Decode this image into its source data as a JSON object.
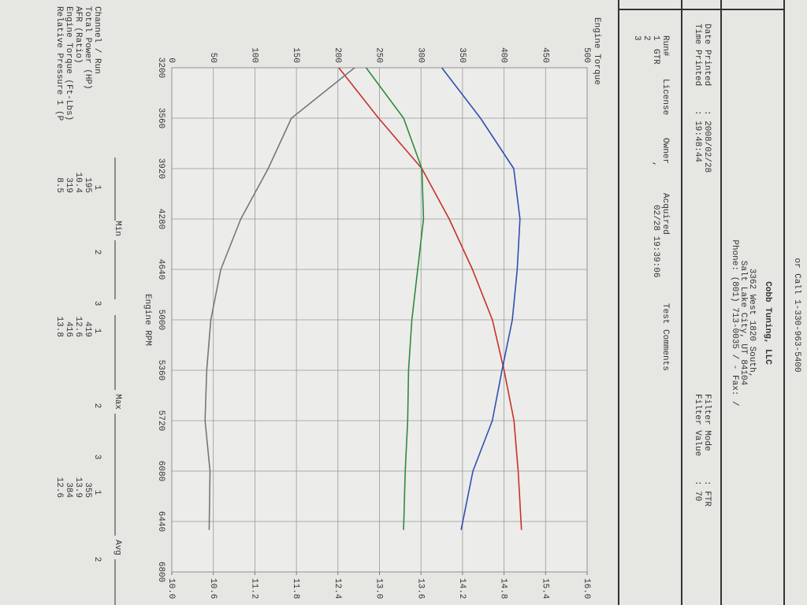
{
  "header": {
    "call": "or Call 1-330-963-5400",
    "company": "Cobb Tuning, LLC",
    "address": [
      "3362 West 1820 South,",
      "Salt Lake City, UT  84104",
      "Phone: (801) 713-0035 /  - Fax: /"
    ],
    "fields": [
      {
        "label": "Date Printed",
        "value": ": 2008/02/28"
      },
      {
        "label": "Time Printed",
        "value": ": 19:48:44"
      },
      {
        "label": "Filter Mode",
        "value": ": FTR"
      },
      {
        "label": "Filter Value",
        "value": ": 70"
      }
    ]
  },
  "runs": {
    "columns": [
      "Run#",
      "License",
      "Owner",
      "Acquired",
      "Test Comments"
    ],
    "rows": [
      [
        "1",
        "GTR",
        ",",
        "02/28 19:39:06"
      ],
      [
        "2"
      ],
      [
        "3"
      ]
    ]
  },
  "stats": {
    "header": "Channel / Run",
    "groups": [
      "Min",
      "Max",
      "Avg"
    ],
    "runs": [
      "1",
      "2",
      "3",
      "1",
      "2",
      "3",
      "1",
      "2"
    ],
    "rows": [
      {
        "label": "Total Power (HP)",
        "values": [
          "195",
          "419",
          "355"
        ]
      },
      {
        "label": "AFR (Ratio)",
        "values": [
          "10.4",
          "12.6",
          "13.9"
        ]
      },
      {
        "label": "Engine Torque (Ft-Lbs)",
        "values": [
          "319",
          "416",
          "384"
        ]
      },
      {
        "label": "Relative Pressure 1 (P",
        "values": [
          "8.5",
          "13.8",
          "12.6"
        ]
      }
    ]
  },
  "chart_data": {
    "type": "line",
    "ylabel": "Engine Torque",
    "xlabel": "Engine RPM",
    "x": [
      3200,
      3560,
      3920,
      4280,
      4640,
      5000,
      5360,
      5720,
      6080,
      6500
    ],
    "xlim": [
      3200,
      6800
    ],
    "xticks": [
      3200,
      3560,
      3920,
      4280,
      4640,
      5000,
      5360,
      5720,
      6080,
      6440,
      6800
    ],
    "ylim": [
      0,
      500
    ],
    "yticks": [
      0,
      50,
      100,
      150,
      200,
      250,
      300,
      350,
      400,
      450,
      500
    ],
    "y2lim": [
      10,
      16
    ],
    "y2ticks": [
      {
        "value": 10,
        "label": "10.0"
      },
      10.6,
      11.2,
      11.8,
      12.4,
      {
        "value": 13,
        "label": "13.0"
      },
      13.6,
      14.2,
      14.8,
      15.4,
      {
        "value": 16,
        "label": "16.0"
      }
    ],
    "grid": true,
    "series": [
      {
        "color": "#c8312a",
        "values": [
          201,
          249,
          301,
          334,
          362,
          386,
          400,
          412,
          417,
          421
        ]
      },
      {
        "color": "#2e8b3a",
        "values": [
          234,
          279,
          301,
          303,
          296,
          289,
          285,
          284,
          281,
          279
        ]
      },
      {
        "color": "#777777",
        "values": [
          220,
          144,
          116,
          83,
          59,
          47,
          42,
          40,
          46,
          45
        ]
      },
      {
        "color": "#3050b0",
        "axis": "y2",
        "values": [
          13.9,
          14.46,
          14.94,
          15.03,
          14.99,
          14.92,
          14.77,
          14.63,
          14.35,
          14.18
        ]
      }
    ]
  }
}
